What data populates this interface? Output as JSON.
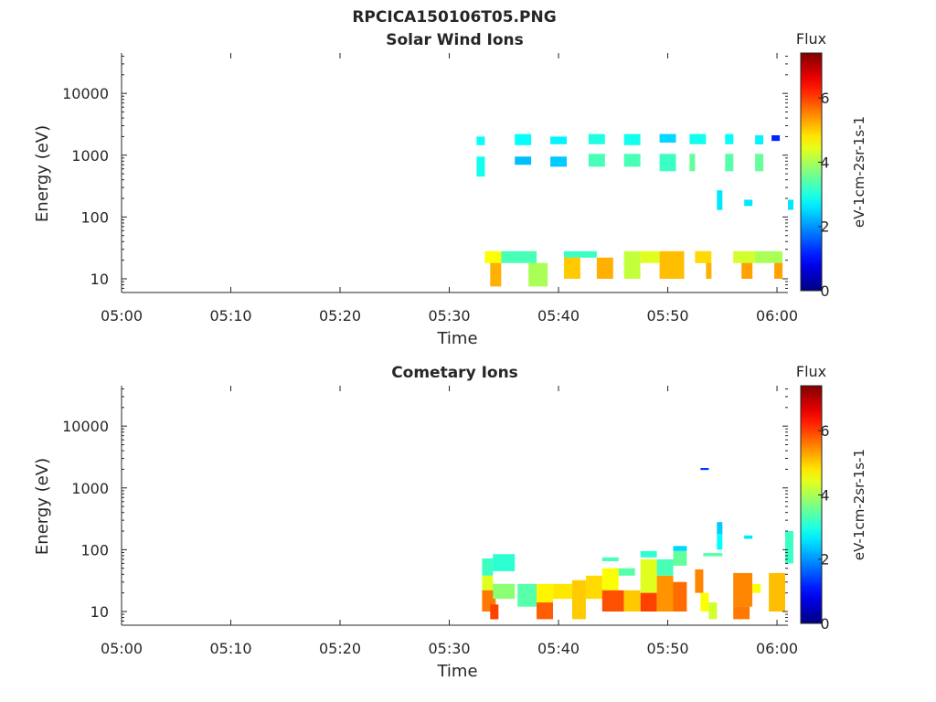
{
  "figure": {
    "title": "RPCICA150106T05.PNG"
  },
  "chart_data": [
    {
      "type": "heatmap",
      "title": "Solar Wind Ions",
      "xlabel": "Time",
      "ylabel": "Energy (eV)",
      "xticks": [
        "05:00",
        "05:10",
        "05:20",
        "05:30",
        "05:40",
        "05:50",
        "06:00"
      ],
      "yticks": [
        "10",
        "100",
        "1000",
        "10000"
      ],
      "xlim": [
        "05:00",
        "06:01"
      ],
      "ylim": [
        6,
        45000
      ],
      "yscale": "log",
      "colorbar": {
        "title": "Flux",
        "label": "eV-1cm-2sr-1s-1",
        "ticks": [
          "0",
          "2",
          "4",
          "6"
        ],
        "range": [
          0,
          7.4
        ],
        "colormap": "jet"
      },
      "cells": [
        {
          "t0": "05:32:30",
          "t1": "05:33:15",
          "e0": 1450,
          "e1": 2000,
          "v": 2.8
        },
        {
          "t0": "05:32:30",
          "t1": "05:33:15",
          "e0": 450,
          "e1": 950,
          "v": 2.9
        },
        {
          "t0": "05:36:00",
          "t1": "05:37:30",
          "e0": 1450,
          "e1": 2200,
          "v": 2.8
        },
        {
          "t0": "05:36:00",
          "t1": "05:37:30",
          "e0": 700,
          "e1": 950,
          "v": 2.3
        },
        {
          "t0": "05:39:15",
          "t1": "05:40:45",
          "e0": 1500,
          "e1": 2000,
          "v": 2.7
        },
        {
          "t0": "05:39:15",
          "t1": "05:40:45",
          "e0": 650,
          "e1": 950,
          "v": 2.4
        },
        {
          "t0": "05:42:45",
          "t1": "05:44:15",
          "e0": 1500,
          "e1": 2200,
          "v": 3.0
        },
        {
          "t0": "05:42:45",
          "t1": "05:44:15",
          "e0": 650,
          "e1": 1050,
          "v": 3.3
        },
        {
          "t0": "05:46:00",
          "t1": "05:47:30",
          "e0": 1450,
          "e1": 2200,
          "v": 2.9
        },
        {
          "t0": "05:46:00",
          "t1": "05:47:30",
          "e0": 650,
          "e1": 1050,
          "v": 3.3
        },
        {
          "t0": "05:49:15",
          "t1": "05:50:45",
          "e0": 1600,
          "e1": 2200,
          "v": 2.5
        },
        {
          "t0": "05:49:15",
          "t1": "05:50:45",
          "e0": 550,
          "e1": 1050,
          "v": 3.2
        },
        {
          "t0": "05:52:00",
          "t1": "05:53:30",
          "e0": 1500,
          "e1": 2200,
          "v": 2.9
        },
        {
          "t0": "05:52:00",
          "t1": "05:52:30",
          "e0": 550,
          "e1": 1050,
          "v": 3.5
        },
        {
          "t0": "05:54:30",
          "t1": "05:55:00",
          "e0": 130,
          "e1": 270,
          "v": 2.6
        },
        {
          "t0": "05:55:15",
          "t1": "05:56:00",
          "e0": 1500,
          "e1": 2200,
          "v": 2.8
        },
        {
          "t0": "05:55:15",
          "t1": "05:56:00",
          "e0": 550,
          "e1": 1050,
          "v": 3.4
        },
        {
          "t0": "05:57:00",
          "t1": "05:57:45",
          "e0": 150,
          "e1": 190,
          "v": 2.6
        },
        {
          "t0": "05:58:00",
          "t1": "05:58:45",
          "e0": 1500,
          "e1": 2100,
          "v": 2.7
        },
        {
          "t0": "05:58:00",
          "t1": "05:58:45",
          "e0": 550,
          "e1": 1050,
          "v": 3.5
        },
        {
          "t0": "05:59:30",
          "t1": "06:00:15",
          "e0": 1700,
          "e1": 2100,
          "v": 1.2
        },
        {
          "t0": "06:01:00",
          "t1": "06:01:30",
          "e0": 130,
          "e1": 190,
          "v": 2.6
        },
        {
          "t0": "05:33:15",
          "t1": "05:34:45",
          "e0": 18,
          "e1": 28,
          "v": 4.6
        },
        {
          "t0": "05:33:45",
          "t1": "05:34:45",
          "e0": 7.5,
          "e1": 18,
          "v": 5.2
        },
        {
          "t0": "05:34:45",
          "t1": "05:38:00",
          "e0": 18,
          "e1": 28,
          "v": 3.3
        },
        {
          "t0": "05:37:15",
          "t1": "05:39:00",
          "e0": 7.5,
          "e1": 18,
          "v": 4.0
        },
        {
          "t0": "05:40:30",
          "t1": "05:43:30",
          "e0": 22,
          "e1": 28,
          "v": 3.2
        },
        {
          "t0": "05:40:30",
          "t1": "05:42:00",
          "e0": 10,
          "e1": 22,
          "v": 5.0
        },
        {
          "t0": "05:43:30",
          "t1": "05:45:00",
          "e0": 10,
          "e1": 22,
          "v": 5.2
        },
        {
          "t0": "05:46:00",
          "t1": "05:47:30",
          "e0": 10,
          "e1": 28,
          "v": 4.2
        },
        {
          "t0": "05:47:30",
          "t1": "05:49:15",
          "e0": 18,
          "e1": 28,
          "v": 4.4
        },
        {
          "t0": "05:49:15",
          "t1": "05:51:30",
          "e0": 10,
          "e1": 28,
          "v": 5.1
        },
        {
          "t0": "05:52:30",
          "t1": "05:54:00",
          "e0": 18,
          "e1": 28,
          "v": 4.9
        },
        {
          "t0": "05:53:30",
          "t1": "05:54:00",
          "e0": 10,
          "e1": 18,
          "v": 5.2
        },
        {
          "t0": "05:56:00",
          "t1": "05:58:00",
          "e0": 18,
          "e1": 28,
          "v": 4.3
        },
        {
          "t0": "05:56:45",
          "t1": "05:57:45",
          "e0": 10,
          "e1": 18,
          "v": 5.3
        },
        {
          "t0": "05:58:00",
          "t1": "06:00:30",
          "e0": 18,
          "e1": 28,
          "v": 4.0
        },
        {
          "t0": "05:59:45",
          "t1": "06:00:30",
          "e0": 10,
          "e1": 18,
          "v": 5.3
        }
      ]
    },
    {
      "type": "heatmap",
      "title": "Cometary Ions",
      "xlabel": "Time",
      "ylabel": "Energy (eV)",
      "xticks": [
        "05:00",
        "05:10",
        "05:20",
        "05:30",
        "05:40",
        "05:50",
        "06:00"
      ],
      "yticks": [
        "10",
        "100",
        "1000",
        "10000"
      ],
      "xlim": [
        "05:00",
        "06:01"
      ],
      "ylim": [
        6,
        45000
      ],
      "yscale": "log",
      "colorbar": {
        "title": "Flux",
        "label": "eV-1cm-2sr-1s-1",
        "ticks": [
          "0",
          "2",
          "4",
          "6"
        ],
        "range": [
          0,
          7.4
        ],
        "colormap": "jet"
      },
      "cells": [
        {
          "t0": "05:53:00",
          "t1": "05:53:45",
          "e0": 1950,
          "e1": 2100,
          "v": 1.3
        },
        {
          "t0": "05:33:00",
          "t1": "05:34:00",
          "e0": 38,
          "e1": 72,
          "v": 3.2
        },
        {
          "t0": "05:34:00",
          "t1": "05:36:00",
          "e0": 45,
          "e1": 85,
          "v": 3.1
        },
        {
          "t0": "05:33:00",
          "t1": "05:34:00",
          "e0": 13,
          "e1": 38,
          "v": 4.4
        },
        {
          "t0": "05:33:00",
          "t1": "05:34:15",
          "e0": 10,
          "e1": 22,
          "v": 5.6
        },
        {
          "t0": "05:33:45",
          "t1": "05:34:30",
          "e0": 7.5,
          "e1": 13,
          "v": 6.0
        },
        {
          "t0": "05:34:00",
          "t1": "05:36:00",
          "e0": 16,
          "e1": 28,
          "v": 3.8
        },
        {
          "t0": "05:36:15",
          "t1": "05:38:00",
          "e0": 12,
          "e1": 28,
          "v": 3.4
        },
        {
          "t0": "05:38:00",
          "t1": "05:39:30",
          "e0": 10,
          "e1": 28,
          "v": 4.7
        },
        {
          "t0": "05:38:00",
          "t1": "05:39:30",
          "e0": 7.5,
          "e1": 14,
          "v": 5.8
        },
        {
          "t0": "05:39:30",
          "t1": "05:41:15",
          "e0": 16,
          "e1": 28,
          "v": 4.8
        },
        {
          "t0": "05:41:15",
          "t1": "05:42:30",
          "e0": 10,
          "e1": 32,
          "v": 5.0
        },
        {
          "t0": "05:41:15",
          "t1": "05:42:30",
          "e0": 7.5,
          "e1": 12,
          "v": 5.0
        },
        {
          "t0": "05:42:30",
          "t1": "05:44:00",
          "e0": 16,
          "e1": 38,
          "v": 4.9
        },
        {
          "t0": "05:44:00",
          "t1": "05:45:30",
          "e0": 65,
          "e1": 75,
          "v": 3.3
        },
        {
          "t0": "05:44:00",
          "t1": "05:45:30",
          "e0": 16,
          "e1": 50,
          "v": 4.6
        },
        {
          "t0": "05:44:00",
          "t1": "05:46:00",
          "e0": 10,
          "e1": 22,
          "v": 5.9
        },
        {
          "t0": "05:45:30",
          "t1": "05:47:00",
          "e0": 38,
          "e1": 50,
          "v": 3.4
        },
        {
          "t0": "05:46:00",
          "t1": "05:47:30",
          "e0": 10,
          "e1": 22,
          "v": 5.0
        },
        {
          "t0": "05:47:30",
          "t1": "05:49:00",
          "e0": 75,
          "e1": 95,
          "v": 3.1
        },
        {
          "t0": "05:47:30",
          "t1": "05:49:00",
          "e0": 20,
          "e1": 70,
          "v": 4.4
        },
        {
          "t0": "05:47:30",
          "t1": "05:49:00",
          "e0": 10,
          "e1": 20,
          "v": 6.0
        },
        {
          "t0": "05:49:00",
          "t1": "05:50:30",
          "e0": 38,
          "e1": 70,
          "v": 3.3
        },
        {
          "t0": "05:49:00",
          "t1": "05:50:30",
          "e0": 10,
          "e1": 38,
          "v": 5.4
        },
        {
          "t0": "05:50:30",
          "t1": "05:51:45",
          "e0": 95,
          "e1": 115,
          "v": 2.5
        },
        {
          "t0": "05:50:30",
          "t1": "05:51:45",
          "e0": 55,
          "e1": 95,
          "v": 3.5
        },
        {
          "t0": "05:50:30",
          "t1": "05:51:45",
          "e0": 10,
          "e1": 30,
          "v": 5.7
        },
        {
          "t0": "05:52:30",
          "t1": "05:53:15",
          "e0": 20,
          "e1": 48,
          "v": 5.5
        },
        {
          "t0": "05:53:00",
          "t1": "05:53:45",
          "e0": 10,
          "e1": 20,
          "v": 4.6
        },
        {
          "t0": "05:53:45",
          "t1": "05:54:30",
          "e0": 7.5,
          "e1": 14,
          "v": 4.3
        },
        {
          "t0": "05:53:15",
          "t1": "05:55:00",
          "e0": 78,
          "e1": 88,
          "v": 3.4
        },
        {
          "t0": "05:54:30",
          "t1": "05:55:00",
          "e0": 180,
          "e1": 280,
          "v": 2.4
        },
        {
          "t0": "05:54:30",
          "t1": "05:55:00",
          "e0": 100,
          "e1": 180,
          "v": 2.8
        },
        {
          "t0": "05:56:00",
          "t1": "05:57:45",
          "e0": 12,
          "e1": 42,
          "v": 5.5
        },
        {
          "t0": "05:57:45",
          "t1": "05:58:30",
          "e0": 20,
          "e1": 28,
          "v": 4.6
        },
        {
          "t0": "05:56:00",
          "t1": "05:57:30",
          "e0": 7.5,
          "e1": 12,
          "v": 5.6
        },
        {
          "t0": "05:57:00",
          "t1": "05:57:45",
          "e0": 150,
          "e1": 170,
          "v": 2.6
        },
        {
          "t0": "05:59:15",
          "t1": "06:00:45",
          "e0": 10,
          "e1": 42,
          "v": 5.1
        },
        {
          "t0": "06:00:45",
          "t1": "06:01:30",
          "e0": 60,
          "e1": 200,
          "v": 3.2
        }
      ]
    }
  ]
}
